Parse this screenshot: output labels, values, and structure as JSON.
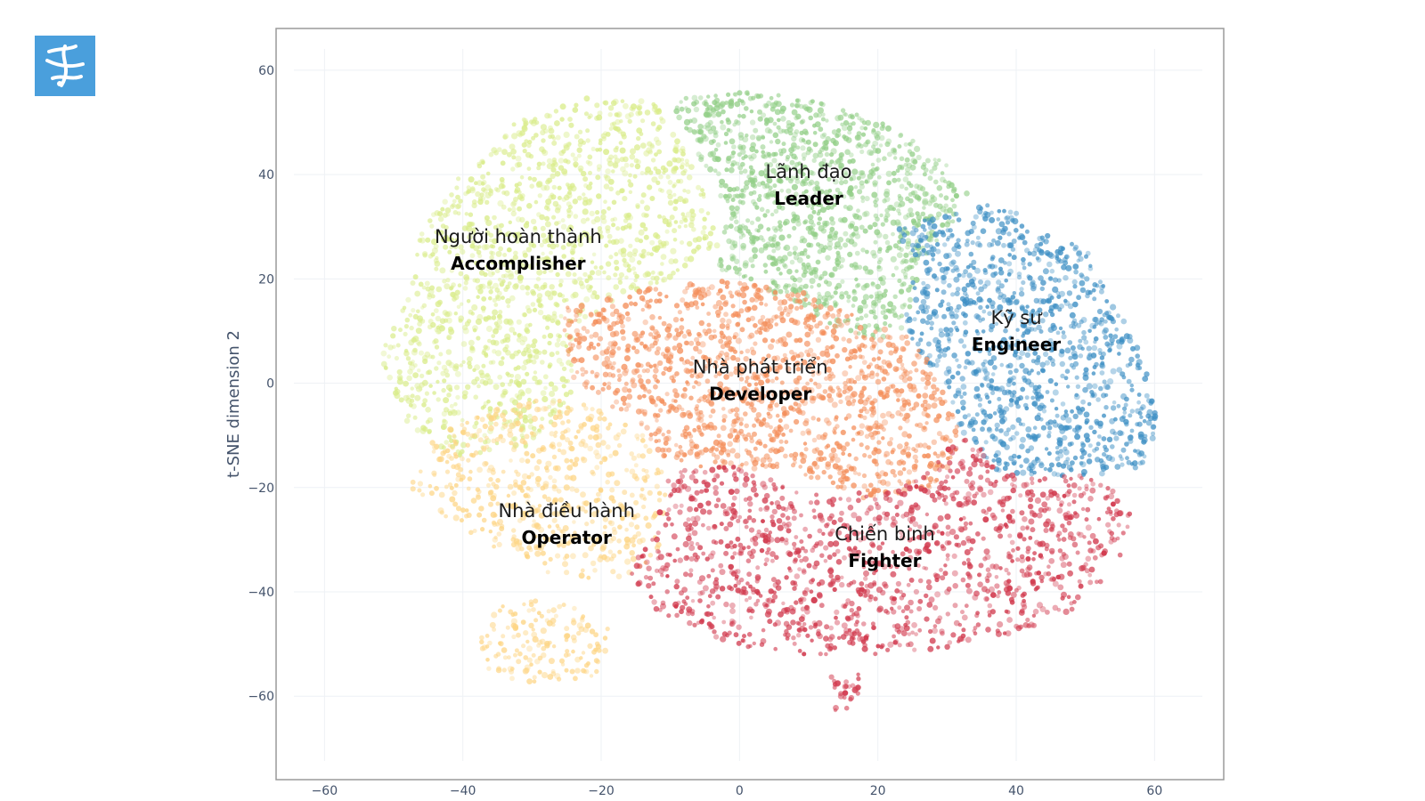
{
  "logo": {
    "icon": "stylized-ribbon-logo-icon",
    "color": "#4a9fdc"
  },
  "chart_data": {
    "type": "scatter",
    "title": "",
    "xlabel": "",
    "ylabel": "t-SNE dimension 2",
    "xlim": [
      -67,
      70
    ],
    "ylim": [
      -76,
      68
    ],
    "x_ticks": [
      -60,
      -40,
      -20,
      0,
      20,
      40,
      60
    ],
    "y_ticks": [
      60,
      40,
      20,
      0,
      -20,
      -40,
      -60
    ],
    "x_tick_labels": [
      "−60",
      "−40",
      "−20",
      "0",
      "20",
      "40",
      "60"
    ],
    "y_tick_labels": [
      "60",
      "40",
      "20",
      "0",
      "−20",
      "−40",
      "−60"
    ],
    "grid": true,
    "legend": "none",
    "clusters": [
      {
        "id": "accomplisher",
        "label_vi": "Người hoàn thành",
        "label_en": "Accomplisher",
        "color": "#d9ec8a",
        "label_at": [
          -32,
          25.5
        ]
      },
      {
        "id": "leader",
        "label_vi": "Lãnh đạo",
        "label_en": "Leader",
        "color": "#93cf88",
        "label_at": [
          10,
          38
        ]
      },
      {
        "id": "engineer",
        "label_vi": "Kỹ sư",
        "label_en": "Engineer",
        "color": "#3d8fc4",
        "label_at": [
          40,
          10
        ]
      },
      {
        "id": "developer",
        "label_vi": "Nhà phát triển",
        "label_en": "Developer",
        "color": "#f48e5a",
        "label_at": [
          3,
          0.5
        ]
      },
      {
        "id": "operator",
        "label_vi": "Nhà điều hành",
        "label_en": "Operator",
        "color": "#fdd585",
        "label_at": [
          -25,
          -27
        ]
      },
      {
        "id": "fighter",
        "label_vi": "Chiến binh",
        "label_en": "Fighter",
        "color": "#d23c50",
        "label_at": [
          21,
          -31.5
        ]
      }
    ]
  }
}
